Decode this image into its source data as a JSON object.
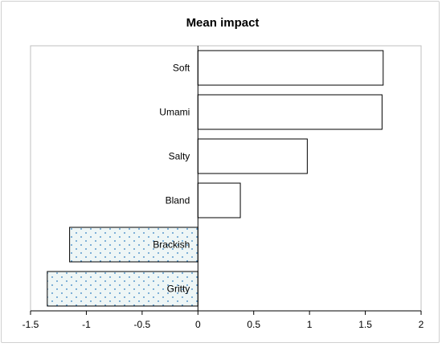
{
  "chart_data": {
    "type": "bar",
    "orientation": "horizontal",
    "title": "Mean impact",
    "xlabel": "",
    "ylabel": "",
    "categories": [
      "Soft",
      "Umami",
      "Salty",
      "Bland",
      "Brackish",
      "Gritty"
    ],
    "values": [
      1.66,
      1.65,
      0.98,
      0.38,
      -1.15,
      -1.35
    ],
    "xlim": [
      -1.5,
      2
    ],
    "xticks": [
      "-1.5",
      "-1",
      "-0.5",
      "0",
      "0.5",
      "1",
      "1.5",
      "2"
    ],
    "grid": false,
    "legend": "none",
    "colors": {
      "positive_fill": "#ffffff",
      "negative_fill": "#eef6f6",
      "negative_dots": "#2f7fc1",
      "bar_stroke": "#000000",
      "axis": "#000000",
      "plot_border": "#bfbfbf"
    }
  }
}
